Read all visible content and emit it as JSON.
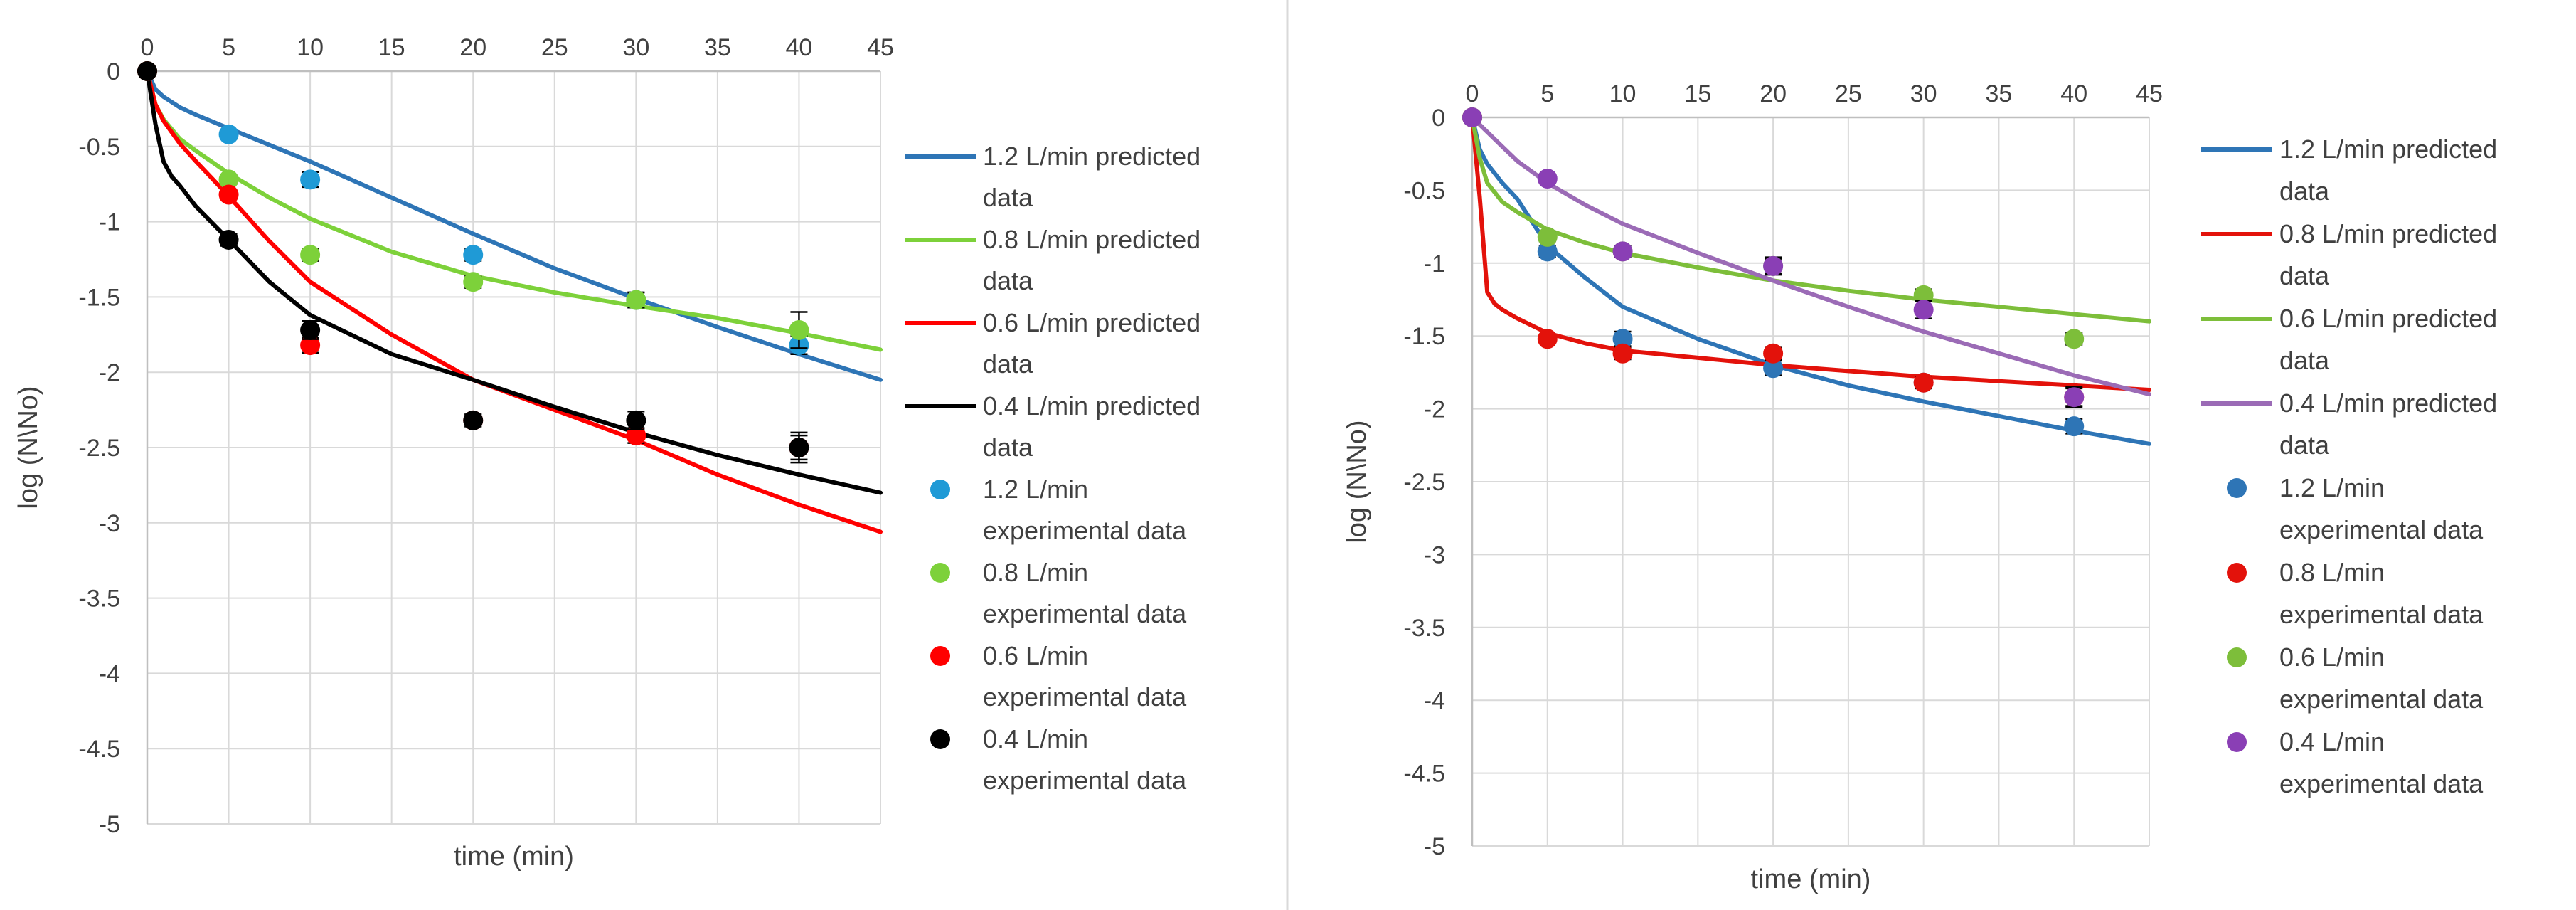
{
  "chart_data": [
    {
      "type": "scatter",
      "title": "",
      "xlabel": "time (min)",
      "ylabel": "log (N\\No)",
      "xlim": [
        0,
        45
      ],
      "ylim": [
        -5,
        0
      ],
      "xticks": [
        0,
        5,
        10,
        15,
        20,
        25,
        30,
        35,
        40,
        45
      ],
      "yticks": [
        0,
        -0.5,
        -1,
        -1.5,
        -2,
        -2.5,
        -3,
        -3.5,
        -4,
        -4.5,
        -5
      ],
      "grid": true,
      "x_axis_position": "top",
      "legend_position": "right",
      "predicted": [
        {
          "name": "1.2 L/min predicted data",
          "color": "#2E75B6",
          "x": [
            0,
            0.5,
            1,
            2,
            3,
            5,
            7.5,
            10,
            15,
            20,
            25,
            30,
            35,
            40,
            45
          ],
          "y": [
            0,
            -0.12,
            -0.17,
            -0.24,
            -0.29,
            -0.38,
            -0.49,
            -0.6,
            -0.84,
            -1.08,
            -1.31,
            -1.51,
            -1.7,
            -1.88,
            -2.05
          ]
        },
        {
          "name": "0.8 L/min predicted data",
          "color": "#7DD13A",
          "x": [
            0,
            0.5,
            1,
            2,
            3,
            5,
            7.5,
            10,
            15,
            20,
            25,
            30,
            35,
            40,
            45
          ],
          "y": [
            0,
            -0.22,
            -0.32,
            -0.45,
            -0.53,
            -0.68,
            -0.84,
            -0.98,
            -1.2,
            -1.36,
            -1.47,
            -1.56,
            -1.64,
            -1.74,
            -1.85
          ]
        },
        {
          "name": "0.6 L/min predicted data",
          "color": "#FF0000",
          "x": [
            0,
            0.5,
            1,
            2,
            3,
            5,
            7.5,
            10,
            15,
            20,
            25,
            30,
            35,
            40,
            45
          ],
          "y": [
            0,
            -0.22,
            -0.33,
            -0.48,
            -0.6,
            -0.83,
            -1.13,
            -1.4,
            -1.75,
            -2.05,
            -2.25,
            -2.45,
            -2.68,
            -2.88,
            -3.06
          ]
        },
        {
          "name": "0.4 L/min predicted data",
          "color": "#000000",
          "x": [
            0,
            0.5,
            1,
            1.5,
            2,
            3,
            5,
            7.5,
            10,
            15,
            20,
            25,
            30,
            35,
            40,
            45
          ],
          "y": [
            0,
            -0.35,
            -0.6,
            -0.7,
            -0.76,
            -0.9,
            -1.12,
            -1.4,
            -1.62,
            -1.88,
            -2.05,
            -2.23,
            -2.4,
            -2.55,
            -2.68,
            -2.8
          ]
        }
      ],
      "experimental": [
        {
          "name": "1.2 L/min experimental data",
          "color": "#1F9AD6",
          "x": [
            0,
            5,
            10,
            20,
            30,
            40
          ],
          "y": [
            0,
            -0.42,
            -0.72,
            -1.22,
            -1.52,
            -1.82
          ],
          "err": [
            0,
            0.03,
            0.05,
            0.04,
            0.05,
            0.06
          ]
        },
        {
          "name": "0.8 L/min experimental data",
          "color": "#7DD13A",
          "x": [
            0,
            5,
            10,
            20,
            30,
            40
          ],
          "y": [
            0,
            -0.72,
            -1.22,
            -1.4,
            -1.52,
            -1.72
          ],
          "err": [
            0,
            0.03,
            0.04,
            0.04,
            0.05,
            0.12
          ]
        },
        {
          "name": "0.6 L/min experimental data",
          "color": "#FF0000",
          "x": [
            0,
            5,
            10,
            20,
            30,
            40
          ],
          "y": [
            0,
            -0.82,
            -1.82,
            -2.32,
            -2.42,
            -2.5
          ],
          "err": [
            0,
            0.03,
            0.05,
            0.04,
            0.05,
            0.08
          ]
        },
        {
          "name": "0.4 L/min experimental data",
          "color": "#000000",
          "x": [
            0,
            5,
            10,
            20,
            30,
            40
          ],
          "y": [
            0,
            -1.12,
            -1.72,
            -2.32,
            -2.32,
            -2.5
          ],
          "err": [
            0,
            0.04,
            0.06,
            0.04,
            0.06,
            0.1
          ]
        }
      ]
    },
    {
      "type": "scatter",
      "title": "",
      "xlabel": "time (min)",
      "ylabel": "log (N\\No)",
      "xlim": [
        0,
        45
      ],
      "ylim": [
        -5,
        0
      ],
      "xticks": [
        0,
        5,
        10,
        15,
        20,
        25,
        30,
        35,
        40,
        45
      ],
      "yticks": [
        0,
        -0.5,
        -1,
        -1.5,
        -2,
        -2.5,
        -3,
        -3.5,
        -4,
        -4.5,
        -5
      ],
      "grid": true,
      "x_axis_position": "top",
      "legend_position": "right",
      "predicted": [
        {
          "name": "1.2 L/min predicted data",
          "color": "#2E75B6",
          "x": [
            0,
            0.5,
            1,
            2,
            3,
            5,
            7.5,
            10,
            15,
            20,
            25,
            30,
            35,
            40,
            45
          ],
          "y": [
            0,
            -0.22,
            -0.32,
            -0.45,
            -0.56,
            -0.88,
            -1.1,
            -1.3,
            -1.52,
            -1.7,
            -1.84,
            -1.95,
            -2.05,
            -2.15,
            -2.24
          ]
        },
        {
          "name": "0.8 L/min predicted data",
          "color": "#E3120B",
          "x": [
            0,
            0.5,
            1,
            1.5,
            2,
            3,
            5,
            7.5,
            10,
            15,
            20,
            25,
            30,
            35,
            40,
            45
          ],
          "y": [
            0,
            -0.55,
            -1.2,
            -1.28,
            -1.32,
            -1.38,
            -1.48,
            -1.55,
            -1.6,
            -1.65,
            -1.7,
            -1.74,
            -1.78,
            -1.81,
            -1.84,
            -1.87
          ]
        },
        {
          "name": "0.6 L/min predicted data",
          "color": "#7DBE3A",
          "x": [
            0,
            0.5,
            1,
            2,
            3,
            5,
            7.5,
            10,
            15,
            20,
            25,
            30,
            35,
            40,
            45
          ],
          "y": [
            0,
            -0.28,
            -0.45,
            -0.58,
            -0.65,
            -0.77,
            -0.86,
            -0.93,
            -1.03,
            -1.12,
            -1.19,
            -1.25,
            -1.3,
            -1.35,
            -1.4
          ]
        },
        {
          "name": "0.4 L/min predicted data",
          "color": "#9B6BB6",
          "x": [
            0,
            1,
            2,
            3,
            5,
            7.5,
            10,
            15,
            20,
            25,
            30,
            35,
            40,
            45
          ],
          "y": [
            0,
            -0.1,
            -0.2,
            -0.3,
            -0.45,
            -0.6,
            -0.73,
            -0.93,
            -1.12,
            -1.3,
            -1.47,
            -1.62,
            -1.77,
            -1.9
          ]
        }
      ],
      "experimental": [
        {
          "name": "1.2 L/min experimental data",
          "color": "#2E75B6",
          "x": [
            0,
            5,
            10,
            20,
            30,
            40
          ],
          "y": [
            0,
            -0.92,
            -1.52,
            -1.72,
            -1.82,
            -2.12
          ],
          "err": [
            0,
            0.04,
            0.05,
            0.05,
            0.04,
            0.05
          ]
        },
        {
          "name": "0.8 L/min experimental data",
          "color": "#E3120B",
          "x": [
            0,
            5,
            10,
            20,
            30,
            40
          ],
          "y": [
            0,
            -1.52,
            -1.62,
            -1.62,
            -1.82,
            -1.92
          ],
          "err": [
            0,
            0.03,
            0.04,
            0.04,
            0.04,
            0.06
          ]
        },
        {
          "name": "0.6 L/min experimental data",
          "color": "#7DBE3A",
          "x": [
            0,
            5,
            10,
            20,
            30,
            40
          ],
          "y": [
            0,
            -0.82,
            -0.92,
            -1.02,
            -1.22,
            -1.52
          ],
          "err": [
            0,
            0.03,
            0.04,
            0.05,
            0.04,
            0.04
          ]
        },
        {
          "name": "0.4 L/min experimental data",
          "color": "#8A3FB5",
          "x": [
            0,
            5,
            10,
            20,
            30,
            40
          ],
          "y": [
            0,
            -0.42,
            -0.92,
            -1.02,
            -1.32,
            -1.92
          ],
          "err": [
            0,
            0.03,
            0.04,
            0.06,
            0.06,
            0.07
          ]
        }
      ]
    }
  ]
}
